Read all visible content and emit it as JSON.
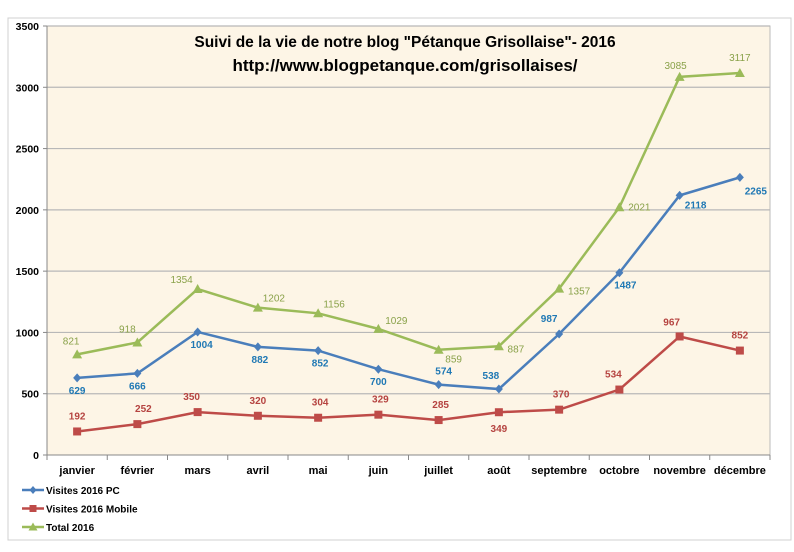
{
  "chart_data": {
    "type": "line",
    "title": "Suivi  de la vie de notre blog \"Pétanque Grisollaise\"- 2016",
    "subtitle": "http://www.blogpetanque.com/grisollaises/",
    "categories": [
      "janvier",
      "février",
      "mars",
      "avril",
      "mai",
      "juin",
      "juillet",
      "août",
      "septembre",
      "octobre",
      "novembre",
      "décembre"
    ],
    "ylim": [
      0,
      3500
    ],
    "yticks": [
      0,
      500,
      1000,
      1500,
      2000,
      2500,
      3000,
      3500
    ],
    "grid": true,
    "legend_position": "bottom-left",
    "background_color": "#fdf5e6",
    "series": [
      {
        "name": "Visites 2016 PC",
        "color": "#4a7ebb",
        "label_color": "#1f78b4",
        "marker": "diamond",
        "values": [
          629,
          666,
          1004,
          882,
          852,
          700,
          574,
          538,
          987,
          1487,
          2118,
          2265
        ]
      },
      {
        "name": "Visites 2016 Mobile",
        "color": "#be4b48",
        "label_color": "#b54340",
        "marker": "square",
        "values": [
          192,
          252,
          350,
          320,
          304,
          329,
          285,
          349,
          370,
          534,
          967,
          852
        ]
      },
      {
        "name": "Total 2016",
        "color": "#9bbb59",
        "label_color": "#8aa24a",
        "marker": "triangle",
        "values": [
          821,
          918,
          1354,
          1202,
          1156,
          1029,
          859,
          887,
          1357,
          2021,
          3085,
          3117
        ]
      }
    ]
  }
}
